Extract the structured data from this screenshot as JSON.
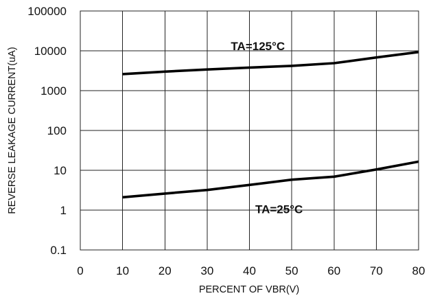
{
  "chart_data": {
    "type": "line",
    "xlabel": "PERCENT OF VBR(V)",
    "ylabel": "REVERSE LEAKAGE CURRENT(uA)",
    "x_scale": "linear",
    "y_scale": "log",
    "xlim": [
      0,
      80
    ],
    "ylim": [
      0.1,
      100000
    ],
    "x_ticks": [
      "0",
      "10",
      "20",
      "30",
      "40",
      "50",
      "60",
      "70",
      "80"
    ],
    "y_ticks": [
      "0.1",
      "1",
      "10",
      "100",
      "1000",
      "10000",
      "100000"
    ],
    "grid": true,
    "series": [
      {
        "x": [
          10,
          20,
          30,
          40,
          50,
          60,
          70,
          80
        ],
        "y": [
          2600,
          3000,
          3400,
          3800,
          4200,
          4900,
          6800,
          9300
        ],
        "color": "#000000"
      },
      {
        "x": [
          10,
          20,
          30,
          40,
          50,
          60,
          70,
          80
        ],
        "y": [
          2.1,
          2.6,
          3.2,
          4.3,
          5.8,
          6.9,
          10.5,
          16.5
        ],
        "color": "#000000"
      }
    ],
    "annotations": [
      {
        "text": "TA=125°C",
        "x": 42,
        "y": 10500
      },
      {
        "text": "TA=25°C",
        "x": 47,
        "y": 0.83
      }
    ]
  }
}
